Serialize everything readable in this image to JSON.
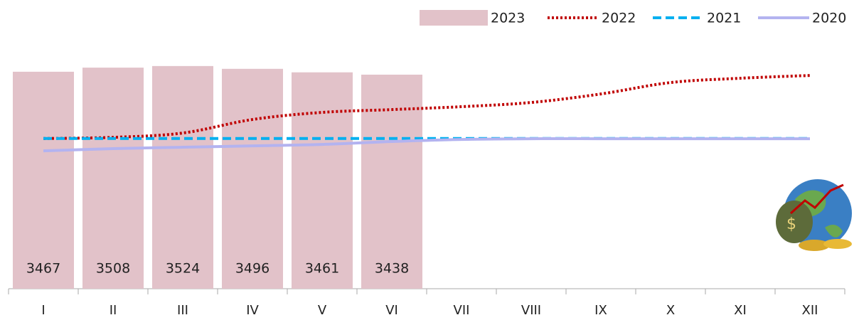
{
  "chart_data": {
    "type": "bar",
    "categories": [
      "I",
      "II",
      "III",
      "IV",
      "V",
      "VI",
      "VII",
      "VIII",
      "IX",
      "X",
      "XI",
      "XII"
    ],
    "ylim": [
      1300,
      3800
    ],
    "legend": "top-right",
    "series": [
      {
        "name": "2023",
        "type": "bar",
        "color": "#e2c2c9",
        "values": [
          3467,
          3508,
          3524,
          3496,
          3461,
          3438,
          null,
          null,
          null,
          null,
          null,
          null
        ]
      },
      {
        "name": "2022",
        "type": "line",
        "style": "dotted",
        "color": "#c00000",
        "values": [
          2800,
          2812,
          2855,
          2990,
          3061,
          3089,
          3118,
          3160,
          3245,
          3359,
          3402,
          3430
        ]
      },
      {
        "name": "2021",
        "type": "line",
        "style": "dashed",
        "color": "#00b0f0",
        "values": [
          2800,
          2800,
          2800,
          2800,
          2800,
          2800,
          2800,
          2800,
          2800,
          2800,
          2800,
          2800
        ]
      },
      {
        "name": "2020",
        "type": "line",
        "style": "solid",
        "color": "#b3b3f0",
        "values": [
          2677,
          2699,
          2713,
          2727,
          2741,
          2770,
          2791,
          2798,
          2798,
          2798,
          2798,
          2798
        ]
      }
    ]
  }
}
